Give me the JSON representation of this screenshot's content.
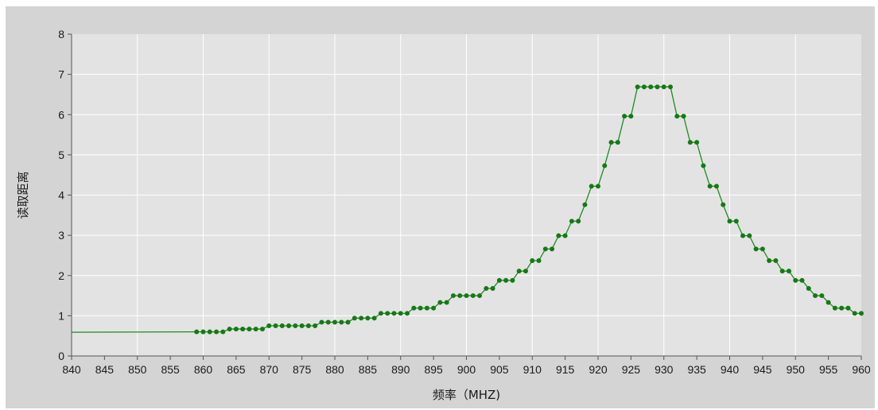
{
  "chart_data": {
    "type": "line",
    "title": "",
    "xlabel": "频率（MHZ)",
    "ylabel": "读取距离",
    "xlim": [
      840,
      960
    ],
    "ylim": [
      0,
      8
    ],
    "x_ticks": [
      "840",
      "845",
      "850",
      "855",
      "860",
      "865",
      "870",
      "875",
      "880",
      "885",
      "890",
      "895",
      "900",
      "905",
      "910",
      "915",
      "920",
      "925",
      "930",
      "935",
      "940",
      "945",
      "950",
      "955",
      "960"
    ],
    "y_ticks": [
      "0",
      "1",
      "2",
      "3",
      "4",
      "5",
      "6",
      "7",
      "8"
    ],
    "grid": true,
    "legend": "none",
    "series": [
      {
        "color": "#1e8c1e",
        "line_only": [
          {
            "x": 840,
            "y": 0.59
          },
          {
            "x": 859,
            "y": 0.6
          }
        ],
        "points": [
          {
            "x": 859,
            "y": 0.6
          },
          {
            "x": 860,
            "y": 0.6
          },
          {
            "x": 861,
            "y": 0.6
          },
          {
            "x": 862,
            "y": 0.6
          },
          {
            "x": 863,
            "y": 0.6
          },
          {
            "x": 864,
            "y": 0.67
          },
          {
            "x": 865,
            "y": 0.67
          },
          {
            "x": 866,
            "y": 0.67
          },
          {
            "x": 867,
            "y": 0.67
          },
          {
            "x": 868,
            "y": 0.67
          },
          {
            "x": 869,
            "y": 0.67
          },
          {
            "x": 870,
            "y": 0.75
          },
          {
            "x": 871,
            "y": 0.75
          },
          {
            "x": 872,
            "y": 0.75
          },
          {
            "x": 873,
            "y": 0.75
          },
          {
            "x": 874,
            "y": 0.75
          },
          {
            "x": 875,
            "y": 0.75
          },
          {
            "x": 876,
            "y": 0.75
          },
          {
            "x": 877,
            "y": 0.75
          },
          {
            "x": 878,
            "y": 0.84
          },
          {
            "x": 879,
            "y": 0.84
          },
          {
            "x": 880,
            "y": 0.84
          },
          {
            "x": 881,
            "y": 0.84
          },
          {
            "x": 882,
            "y": 0.84
          },
          {
            "x": 883,
            "y": 0.94
          },
          {
            "x": 884,
            "y": 0.94
          },
          {
            "x": 885,
            "y": 0.94
          },
          {
            "x": 886,
            "y": 0.94
          },
          {
            "x": 887,
            "y": 1.06
          },
          {
            "x": 888,
            "y": 1.06
          },
          {
            "x": 889,
            "y": 1.06
          },
          {
            "x": 890,
            "y": 1.06
          },
          {
            "x": 891,
            "y": 1.06
          },
          {
            "x": 892,
            "y": 1.19
          },
          {
            "x": 893,
            "y": 1.19
          },
          {
            "x": 894,
            "y": 1.19
          },
          {
            "x": 895,
            "y": 1.19
          },
          {
            "x": 896,
            "y": 1.33
          },
          {
            "x": 897,
            "y": 1.33
          },
          {
            "x": 898,
            "y": 1.5
          },
          {
            "x": 899,
            "y": 1.5
          },
          {
            "x": 900,
            "y": 1.5
          },
          {
            "x": 901,
            "y": 1.5
          },
          {
            "x": 902,
            "y": 1.5
          },
          {
            "x": 903,
            "y": 1.68
          },
          {
            "x": 904,
            "y": 1.68
          },
          {
            "x": 905,
            "y": 1.88
          },
          {
            "x": 906,
            "y": 1.88
          },
          {
            "x": 907,
            "y": 1.88
          },
          {
            "x": 908,
            "y": 2.11
          },
          {
            "x": 909,
            "y": 2.11
          },
          {
            "x": 910,
            "y": 2.37
          },
          {
            "x": 911,
            "y": 2.37
          },
          {
            "x": 912,
            "y": 2.66
          },
          {
            "x": 913,
            "y": 2.66
          },
          {
            "x": 914,
            "y": 2.99
          },
          {
            "x": 915,
            "y": 2.99
          },
          {
            "x": 916,
            "y": 3.35
          },
          {
            "x": 917,
            "y": 3.35
          },
          {
            "x": 918,
            "y": 3.76
          },
          {
            "x": 919,
            "y": 4.22
          },
          {
            "x": 920,
            "y": 4.22
          },
          {
            "x": 921,
            "y": 4.73
          },
          {
            "x": 922,
            "y": 5.31
          },
          {
            "x": 923,
            "y": 5.31
          },
          {
            "x": 924,
            "y": 5.96
          },
          {
            "x": 925,
            "y": 5.96
          },
          {
            "x": 926,
            "y": 6.69
          },
          {
            "x": 927,
            "y": 6.69
          },
          {
            "x": 928,
            "y": 6.69
          },
          {
            "x": 929,
            "y": 6.69
          },
          {
            "x": 930,
            "y": 6.69
          },
          {
            "x": 931,
            "y": 6.69
          },
          {
            "x": 932,
            "y": 5.96
          },
          {
            "x": 933,
            "y": 5.96
          },
          {
            "x": 934,
            "y": 5.31
          },
          {
            "x": 935,
            "y": 5.31
          },
          {
            "x": 936,
            "y": 4.73
          },
          {
            "x": 937,
            "y": 4.22
          },
          {
            "x": 938,
            "y": 4.22
          },
          {
            "x": 939,
            "y": 3.76
          },
          {
            "x": 940,
            "y": 3.35
          },
          {
            "x": 941,
            "y": 3.35
          },
          {
            "x": 942,
            "y": 2.99
          },
          {
            "x": 943,
            "y": 2.99
          },
          {
            "x": 944,
            "y": 2.66
          },
          {
            "x": 945,
            "y": 2.66
          },
          {
            "x": 946,
            "y": 2.37
          },
          {
            "x": 947,
            "y": 2.37
          },
          {
            "x": 948,
            "y": 2.11
          },
          {
            "x": 949,
            "y": 2.11
          },
          {
            "x": 950,
            "y": 1.88
          },
          {
            "x": 951,
            "y": 1.88
          },
          {
            "x": 952,
            "y": 1.68
          },
          {
            "x": 953,
            "y": 1.5
          },
          {
            "x": 954,
            "y": 1.5
          },
          {
            "x": 955,
            "y": 1.33
          },
          {
            "x": 956,
            "y": 1.19
          },
          {
            "x": 957,
            "y": 1.19
          },
          {
            "x": 958,
            "y": 1.19
          },
          {
            "x": 959,
            "y": 1.06
          },
          {
            "x": 960,
            "y": 1.06
          }
        ]
      }
    ]
  }
}
